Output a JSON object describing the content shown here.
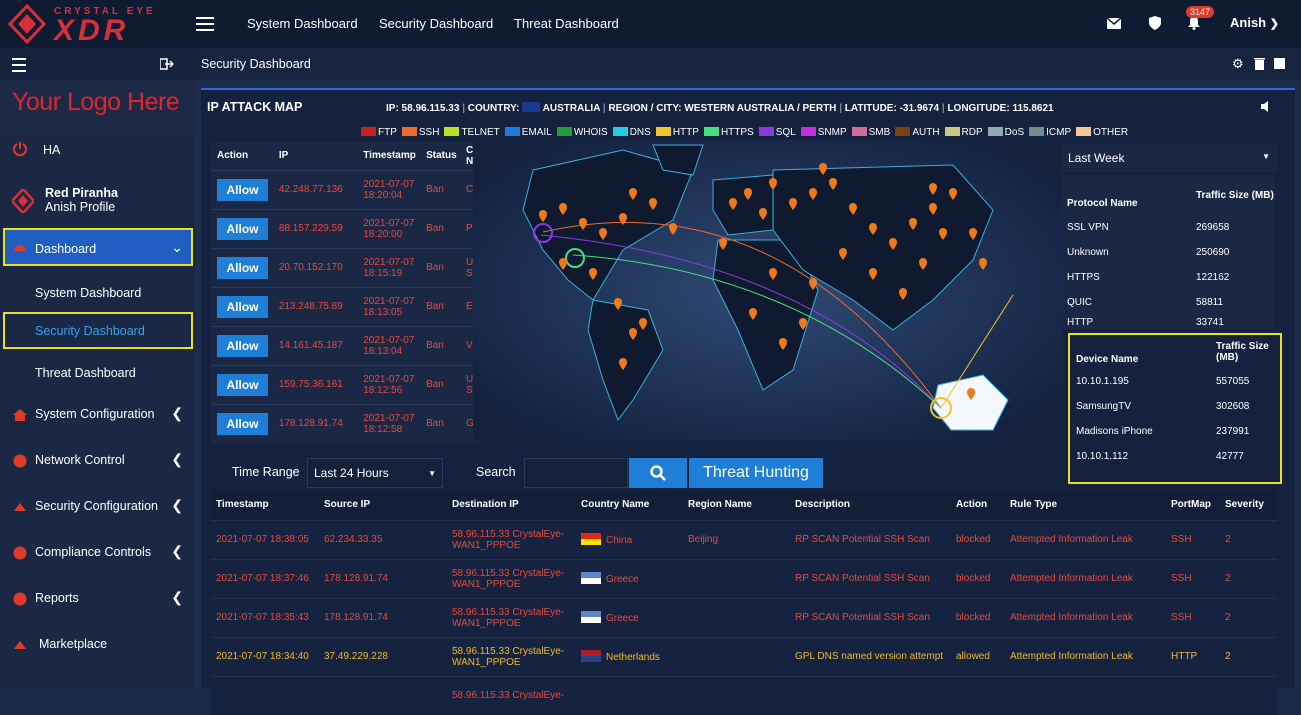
{
  "topbar": {
    "brand_top": "CRYSTAL EYE",
    "brand_main": "XDR",
    "nav": [
      "System Dashboard",
      "Security Dashboard",
      "Threat Dashboard"
    ],
    "notification_count": "3147",
    "user": "Anish"
  },
  "sidebar": {
    "custom_logo": "Your Logo Here",
    "items": [
      {
        "label": "HA"
      },
      {
        "label": "Red Piranha",
        "sub": "Anish Profile"
      },
      {
        "label": "Dashboard"
      },
      {
        "label": "System Dashboard"
      },
      {
        "label": "Security Dashboard"
      },
      {
        "label": "Threat Dashboard"
      },
      {
        "label": "System Configuration"
      },
      {
        "label": "Network Control"
      },
      {
        "label": "Security Configuration"
      },
      {
        "label": "Compliance Controls"
      },
      {
        "label": "Reports"
      },
      {
        "label": "Marketplace"
      }
    ]
  },
  "page": {
    "title": "Security Dashboard"
  },
  "panel": {
    "title": "IP ATTACK MAP",
    "ip": "IP: 58.96.115.33",
    "country": "COUNTRY:",
    "country_name": "AUSTRALIA",
    "region": "REGION / CITY: WESTERN AUSTRALIA / PERTH",
    "latitude": "LATITUDE: -31.9674",
    "longitude": "LONGITUDE: 115.8621",
    "legend": [
      {
        "label": "FTP",
        "color": "#c8221f"
      },
      {
        "label": "SSH",
        "color": "#ef6b2a"
      },
      {
        "label": "TELNET",
        "color": "#b9e026"
      },
      {
        "label": "EMAIL",
        "color": "#1f7ad8"
      },
      {
        "label": "WHOIS",
        "color": "#1d9e3a"
      },
      {
        "label": "DNS",
        "color": "#22cde2"
      },
      {
        "label": "HTTP",
        "color": "#f0c52a"
      },
      {
        "label": "HTTPS",
        "color": "#42e07e"
      },
      {
        "label": "SQL",
        "color": "#8a3bde"
      },
      {
        "label": "SNMP",
        "color": "#c22ee0"
      },
      {
        "label": "SMB",
        "color": "#cf6b9d"
      },
      {
        "label": "AUTH",
        "color": "#7a4210"
      },
      {
        "label": "RDP",
        "color": "#c9c882"
      },
      {
        "label": "DoS",
        "color": "#8eaab5"
      },
      {
        "label": "ICMP",
        "color": "#6f8c8f"
      },
      {
        "label": "OTHER",
        "color": "#f2c59a"
      }
    ]
  },
  "attack_table": {
    "headers": [
      "Action",
      "IP",
      "Timestamp",
      "Status",
      "Co Na"
    ],
    "button_label": "Allow",
    "rows": [
      {
        "ip": "42.248.77.136",
        "ts1": "2021-07-07",
        "ts2": "18:20:04",
        "status": "Ban",
        "cn": "Ch"
      },
      {
        "ip": "88.157.229.59",
        "ts1": "2021-07-07",
        "ts2": "18:20:00",
        "status": "Ban",
        "cn": "Po"
      },
      {
        "ip": "20.70.152.170",
        "ts1": "2021-07-07",
        "ts2": "18:15:19",
        "status": "Ban",
        "cn": "Un Sta"
      },
      {
        "ip": "213.248.75.89",
        "ts1": "2021-07-07",
        "ts2": "18:13:05",
        "status": "Ban",
        "cn": "Eu"
      },
      {
        "ip": "14.161.45.187",
        "ts1": "2021-07-07",
        "ts2": "18:13:04",
        "status": "Ban",
        "cn": "Vie"
      },
      {
        "ip": "159.75.36.161",
        "ts1": "2021-07-07",
        "ts2": "18:12:56",
        "status": "Ban",
        "cn": "Un Sta"
      },
      {
        "ip": "178.128.91.74",
        "ts1": "2021-07-07",
        "ts2": "18:12:58",
        "status": "Ban",
        "cn": "Gr"
      }
    ]
  },
  "protocol_panel": {
    "period": "Last Week",
    "headers": [
      "Protocol Name",
      "Traffic Size (MB)"
    ],
    "rows": [
      [
        "SSL VPN",
        "269658"
      ],
      [
        "Unknown",
        "250690"
      ],
      [
        "HTTPS",
        "122162"
      ],
      [
        "QUIC",
        "58811"
      ],
      [
        "HTTP",
        "33741"
      ]
    ]
  },
  "device_panel": {
    "headers": [
      "Device Name",
      "Traffic Size (MB)"
    ],
    "rows": [
      [
        "10.10.1.195",
        "557055"
      ],
      [
        "SamsungTV",
        "302608"
      ],
      [
        "Madisons iPhone",
        "237991"
      ],
      [
        "10.10.1.112",
        "42777"
      ]
    ]
  },
  "controls": {
    "time_range_label": "Time Range",
    "time_range_value": "Last 24 Hours",
    "search_label": "Search",
    "search_value": "",
    "threat_hunting_label": "Threat Hunting"
  },
  "logs": {
    "headers": [
      "Timestamp",
      "Source IP",
      "Destination IP",
      "Country Name",
      "Region Name",
      "Description",
      "Action",
      "Rule Type",
      "PortMap",
      "Severity"
    ],
    "rows": [
      {
        "ts": "2021-07-07 18:38:05",
        "src": "62.234.33.35",
        "dst1": "58.96.115.33 CrystalEye-",
        "dst2": "WAN1_PPPOE",
        "country": "China",
        "region": "Beijing",
        "desc": "RP SCAN Potential SSH Scan",
        "action": "blocked",
        "rule": "Attempted Information Leak",
        "port": "SSH",
        "sev": "2",
        "color": "#e8493a"
      },
      {
        "ts": "2021-07-07 18:37:46",
        "src": "178.128.91.74",
        "dst1": "58.96.115.33 CrystalEye-",
        "dst2": "WAN1_PPPOE",
        "country": "Greece",
        "region": "",
        "desc": "RP SCAN Potential SSH Scan",
        "action": "blocked",
        "rule": "Attempted Information Leak",
        "port": "SSH",
        "sev": "2",
        "color": "#e8493a"
      },
      {
        "ts": "2021-07-07 18:35:43",
        "src": "178.128.91.74",
        "dst1": "58.96.115.33 CrystalEye-",
        "dst2": "WAN1_PPPOE",
        "country": "Greece",
        "region": "",
        "desc": "RP SCAN Potential SSH Scan",
        "action": "blocked",
        "rule": "Attempted Information Leak",
        "port": "SSH",
        "sev": "2",
        "color": "#e8493a"
      },
      {
        "ts": "2021-07-07 18:34:40",
        "src": "37.49.229.228",
        "dst1": "58.96.115.33 CrystalEye-",
        "dst2": "WAN1_PPPOE",
        "country": "Netherlands",
        "region": "",
        "desc": "GPL DNS named version attempt",
        "action": "allowed",
        "rule": "Attempted Information Leak",
        "port": "HTTP",
        "sev": "2",
        "color": "#f0b82a"
      },
      {
        "ts": "",
        "src": "",
        "dst1": "58.96.115.33 CrystalEye-",
        "dst2": "",
        "country": "",
        "region": "",
        "desc": "",
        "action": "",
        "rule": "",
        "port": "",
        "sev": "",
        "color": "#e8493a"
      }
    ]
  }
}
